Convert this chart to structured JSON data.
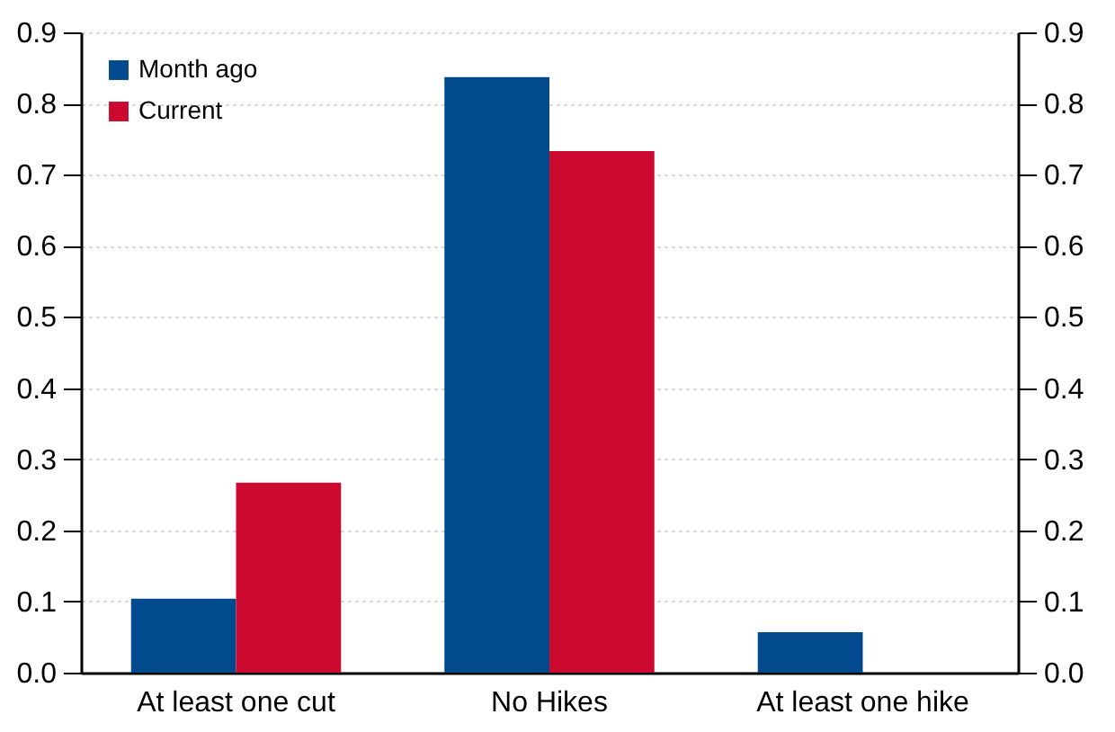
{
  "chart_data": {
    "type": "bar",
    "categories": [
      "At least one cut",
      "No Hikes",
      "At least one hike"
    ],
    "series": [
      {
        "name": "Month ago",
        "color": "#004a8d",
        "values": [
          0.104,
          0.837,
          0.057
        ]
      },
      {
        "name": "Current",
        "color": "#cc0a2f",
        "values": [
          0.267,
          0.733,
          0
        ]
      }
    ],
    "ylim": [
      0,
      0.9
    ],
    "yticks": [
      {
        "value": 0,
        "label": "0.0"
      },
      0.1,
      0.2,
      0.3,
      0.4,
      0.5,
      0.6,
      0.7,
      0.8,
      0.9
    ],
    "y2lim": [
      0,
      0.9
    ],
    "y2ticks": [
      {
        "value": 0,
        "label": "0.0"
      },
      0.1,
      0.2,
      0.3,
      0.4,
      0.5,
      0.6,
      0.7,
      0.8,
      0.9
    ],
    "grid": "y",
    "legend": "top left"
  }
}
